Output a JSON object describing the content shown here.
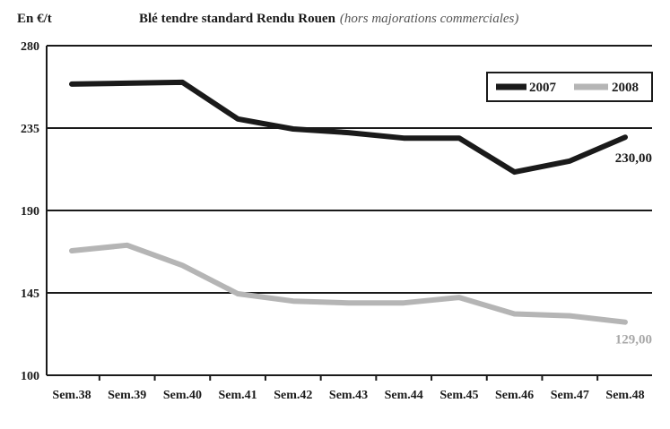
{
  "chart_data": {
    "type": "line",
    "unit_label": "En €/t",
    "title": "Blé tendre standard Rendu Rouen",
    "subtitle": "(hors majorations commerciales)",
    "categories": [
      "Sem.38",
      "Sem.39",
      "Sem.40",
      "Sem.41",
      "Sem.42",
      "Sem.43",
      "Sem.44",
      "Sem.45",
      "Sem.46",
      "Sem.47",
      "Sem.48"
    ],
    "yticks": [
      "100",
      "145",
      "190",
      "235",
      "280"
    ],
    "ylim": [
      100,
      280
    ],
    "grid": true,
    "legend_position": "top-right",
    "series": [
      {
        "name": "2007",
        "color": "#1a1a1a",
        "values": [
          259,
          259.5,
          260,
          240,
          234.5,
          232.5,
          229.5,
          229.5,
          211,
          217,
          230
        ],
        "end_label": "230,00"
      },
      {
        "name": "2008",
        "color": "#b5b5b5",
        "values": [
          168,
          171,
          160,
          144.5,
          140.5,
          139.5,
          139.5,
          142.5,
          133.5,
          132.5,
          129
        ],
        "end_label": "129,00"
      }
    ]
  }
}
